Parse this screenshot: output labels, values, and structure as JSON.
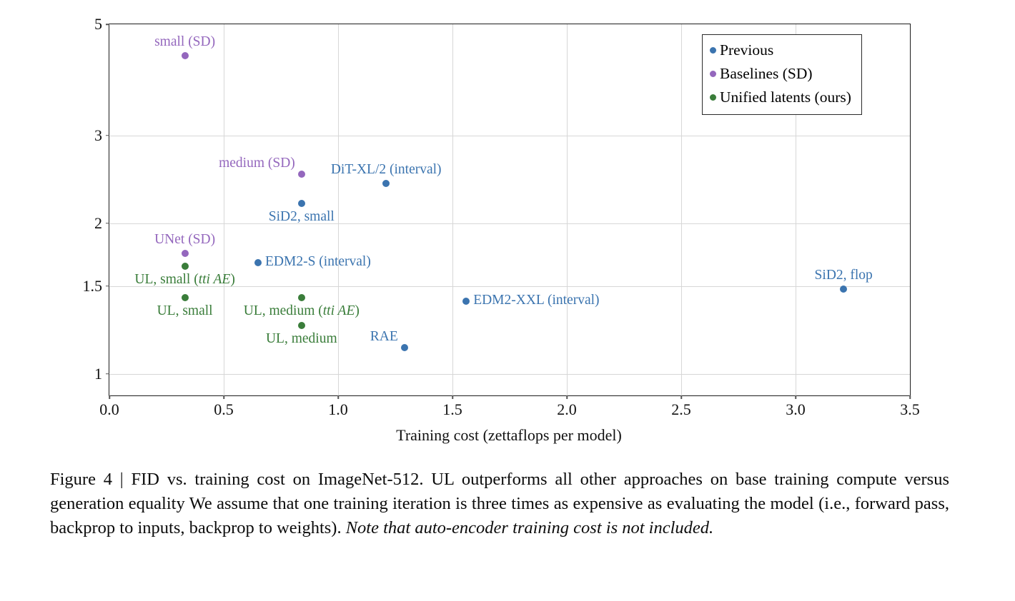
{
  "caption": {
    "text": "Figure 4 | FID vs. training cost on ImageNet-512. UL outperforms all other approaches on base training compute versus generation equality We assume that one training iteration is three times as expensive as evaluating the model (i.e., forward pass, backprop to inputs, backprop to weights). ",
    "italic": "Note that auto-encoder training cost is not included."
  },
  "chart_data": {
    "type": "scatter",
    "title": "",
    "xlabel": "Training cost (zettaflops per model)",
    "ylabel": "",
    "xlim": [
      0,
      3.5
    ],
    "ylim": [
      0.906,
      5
    ],
    "yscale": "log",
    "grid": true,
    "xticks": [
      0.0,
      0.5,
      1.0,
      1.5,
      2.0,
      2.5,
      3.0,
      3.5
    ],
    "xtick_labels": [
      "0.0",
      "0.5",
      "1.0",
      "1.5",
      "2.0",
      "2.5",
      "3.0",
      "3.5"
    ],
    "yticks": [
      1,
      1.5,
      2,
      3,
      5
    ],
    "ytick_labels": [
      "1",
      "1.5",
      "2",
      "3",
      "5"
    ],
    "legend": {
      "position": "top-right",
      "entries": [
        {
          "label": "Previous",
          "color": "#3b74af"
        },
        {
          "label": "Baselines (SD)",
          "color": "#9467bd"
        },
        {
          "label": "Unified latents (ours)",
          "color": "#3a7d3a"
        }
      ]
    },
    "series": [
      {
        "name": "Previous",
        "color": "#3b74af",
        "points": [
          {
            "label": "DiT-XL/2 (interval)",
            "x": 1.21,
            "y": 2.4,
            "label_pos": "above"
          },
          {
            "label": "SiD2, small",
            "x": 0.84,
            "y": 2.19,
            "label_pos": "below"
          },
          {
            "label": "EDM2-S (interval)",
            "x": 0.65,
            "y": 1.67,
            "label_pos": "right"
          },
          {
            "label": "EDM2-XXL (interval)",
            "x": 1.56,
            "y": 1.4,
            "label_pos": "right"
          },
          {
            "label": "RAE",
            "x": 1.29,
            "y": 1.13,
            "label_pos": "above-left"
          },
          {
            "label": "SiD2, flop",
            "x": 3.21,
            "y": 1.48,
            "label_pos": "above"
          }
        ]
      },
      {
        "name": "Baselines (SD)",
        "color": "#9467bd",
        "points": [
          {
            "label": "small (SD)",
            "x": 0.33,
            "y": 4.33,
            "label_pos": "above"
          },
          {
            "label": "medium (SD)",
            "x": 0.84,
            "y": 2.51,
            "label_pos": "above-left"
          },
          {
            "label": "UNet (SD)",
            "x": 0.33,
            "y": 1.74,
            "label_pos": "above"
          }
        ]
      },
      {
        "name": "Unified latents (ours)",
        "color": "#3a7d3a",
        "points": [
          {
            "label": "UL, small (tti AE)",
            "x": 0.33,
            "y": 1.64,
            "label_pos": "below",
            "italic_part": "tti AE"
          },
          {
            "label": "UL, small",
            "x": 0.33,
            "y": 1.42,
            "label_pos": "below"
          },
          {
            "label": "UL, medium (tti AE)",
            "x": 0.84,
            "y": 1.42,
            "label_pos": "below",
            "italic_part": "tti AE"
          },
          {
            "label": "UL, medium",
            "x": 0.84,
            "y": 1.25,
            "label_pos": "below"
          }
        ]
      }
    ]
  }
}
